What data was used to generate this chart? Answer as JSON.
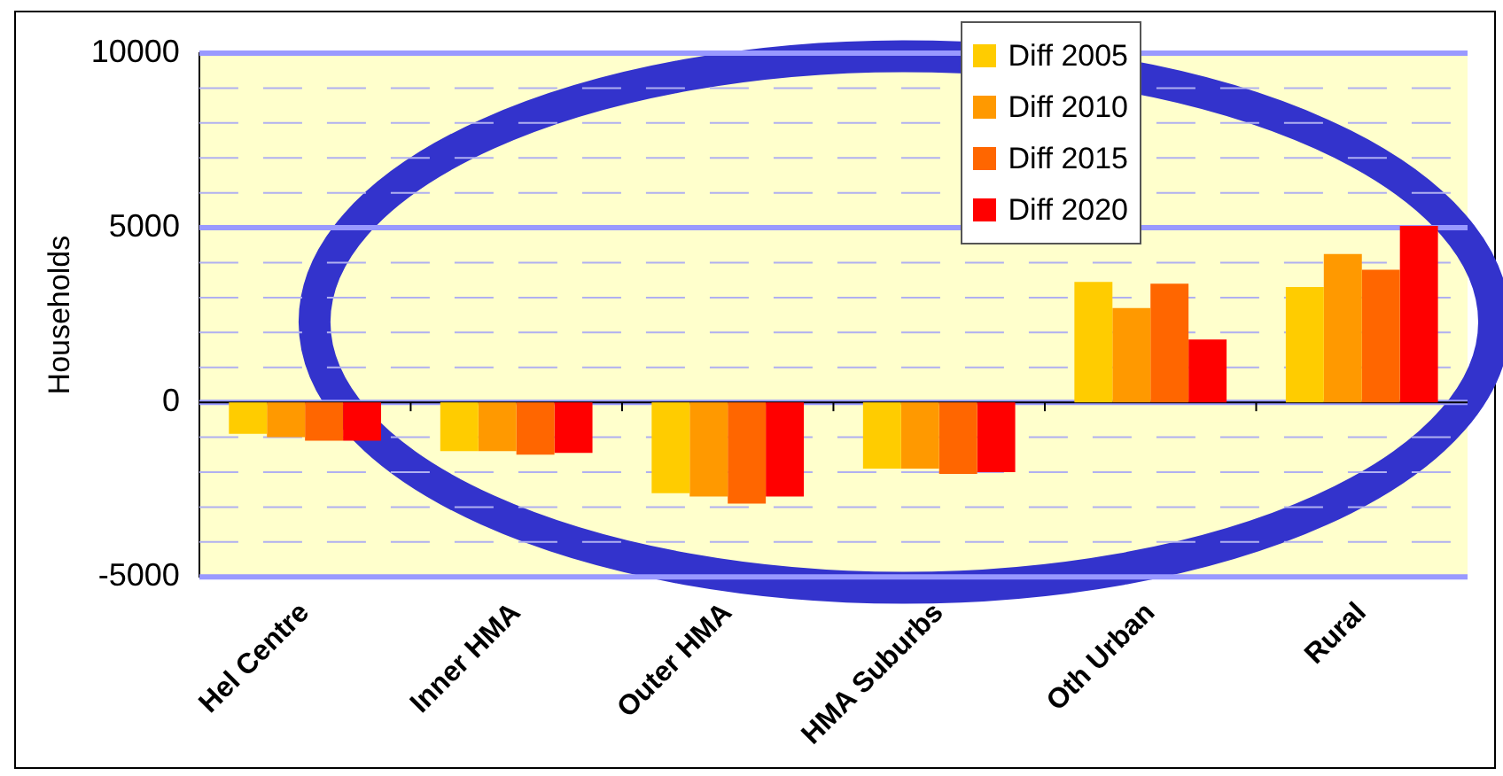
{
  "chart_data": {
    "type": "bar",
    "ylabel": "Households",
    "categories": [
      "Hel Centre",
      "Inner HMA",
      "Outer HMA",
      "HMA Suburbs",
      "Oth Urban",
      "Rural"
    ],
    "series": [
      {
        "name": "Diff 2005",
        "color": "#ffcc00",
        "values": [
          -900,
          -1400,
          -2600,
          -1900,
          3450,
          3300
        ]
      },
      {
        "name": "Diff 2010",
        "color": "#ff9900",
        "values": [
          -1000,
          -1400,
          -2700,
          -1900,
          2700,
          4250
        ]
      },
      {
        "name": "Diff 2015",
        "color": "#ff6600",
        "values": [
          -1100,
          -1500,
          -2900,
          -2050,
          3400,
          3800
        ]
      },
      {
        "name": "Diff 2020",
        "color": "#ff0000",
        "values": [
          -1100,
          -1450,
          -2700,
          -2000,
          1800,
          5050
        ]
      }
    ],
    "ylim": [
      -5000,
      10000
    ],
    "yticks": [
      -5000,
      {
        "value": -4000,
        "label": null
      },
      {
        "value": -3000,
        "label": null
      },
      {
        "value": -2000,
        "label": null
      },
      {
        "value": -1000,
        "label": null
      },
      0,
      {
        "value": 1000,
        "label": null
      },
      {
        "value": 2000,
        "label": null
      },
      {
        "value": 3000,
        "label": null
      },
      {
        "value": 4000,
        "label": null
      },
      5000,
      {
        "value": 6000,
        "label": null
      },
      {
        "value": 7000,
        "label": null
      },
      {
        "value": 8000,
        "label": null
      },
      {
        "value": 9000,
        "label": null
      },
      10000
    ],
    "grid": "y",
    "legend": "top right"
  }
}
